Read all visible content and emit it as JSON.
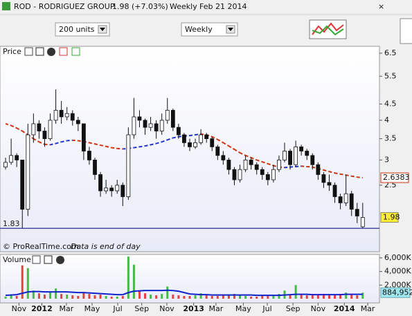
{
  "toolbar": {
    "symbol": "ROD - RODRIGUEZ GROUP",
    "change": "1.98 (+7.03%)",
    "period": "Weekly",
    "date": "Feb 21 2014",
    "units_select": "200 units",
    "period_select": "Weekly"
  },
  "chart_data": [
    {
      "type": "candlestick",
      "title": "Price",
      "log_scale": true,
      "ylim": [
        1.545,
        6.83
      ],
      "xlim": [
        -1,
        67
      ],
      "yticks": [
        6.5,
        5.5,
        4.5,
        4,
        3.5,
        3,
        2.5
      ],
      "ohlc": [
        [
          2.85,
          3.05,
          2.8,
          2.95
        ],
        [
          2.95,
          3.5,
          2.9,
          3.1
        ],
        [
          3.1,
          3.15,
          2.85,
          3.0
        ],
        [
          3.0,
          3.0,
          1.83,
          2.1
        ],
        [
          2.1,
          3.9,
          2.0,
          3.6
        ],
        [
          3.6,
          4.2,
          3.4,
          3.9
        ],
        [
          3.9,
          4.0,
          3.5,
          3.7
        ],
        [
          3.7,
          3.8,
          3.3,
          3.5
        ],
        [
          3.5,
          4.2,
          3.45,
          4.0
        ],
        [
          4.0,
          5.0,
          3.9,
          4.3
        ],
        [
          4.3,
          4.6,
          3.9,
          4.1
        ],
        [
          4.1,
          4.4,
          4.0,
          4.2
        ],
        [
          4.2,
          4.3,
          3.85,
          4.0
        ],
        [
          4.0,
          4.1,
          3.7,
          3.9
        ],
        [
          3.9,
          3.9,
          3.0,
          3.2
        ],
        [
          3.2,
          3.3,
          2.9,
          3.0
        ],
        [
          3.0,
          3.05,
          2.6,
          2.7
        ],
        [
          2.7,
          2.75,
          2.3,
          2.4
        ],
        [
          2.4,
          2.6,
          2.35,
          2.45
        ],
        [
          2.45,
          2.5,
          2.3,
          2.4
        ],
        [
          2.4,
          2.6,
          2.35,
          2.5
        ],
        [
          2.5,
          2.55,
          2.15,
          2.3
        ],
        [
          2.3,
          3.8,
          2.25,
          3.6
        ],
        [
          3.6,
          4.7,
          3.5,
          4.1
        ],
        [
          4.1,
          4.3,
          3.8,
          4.0
        ],
        [
          4.0,
          4.05,
          3.6,
          3.8
        ],
        [
          3.8,
          4.1,
          3.7,
          3.9
        ],
        [
          3.9,
          4.0,
          3.5,
          3.7
        ],
        [
          3.7,
          4.2,
          3.6,
          4.0
        ],
        [
          4.0,
          4.7,
          3.9,
          4.3
        ],
        [
          4.3,
          4.35,
          3.7,
          3.8
        ],
        [
          3.8,
          3.9,
          3.5,
          3.6
        ],
        [
          3.6,
          3.65,
          3.3,
          3.4
        ],
        [
          3.4,
          3.5,
          3.2,
          3.3
        ],
        [
          3.3,
          3.5,
          3.25,
          3.4
        ],
        [
          3.4,
          3.75,
          3.35,
          3.6
        ],
        [
          3.6,
          3.65,
          3.4,
          3.5
        ],
        [
          3.5,
          3.55,
          3.2,
          3.3
        ],
        [
          3.3,
          3.35,
          3.0,
          3.1
        ],
        [
          3.1,
          3.2,
          2.9,
          3.0
        ],
        [
          3.0,
          3.05,
          2.7,
          2.8
        ],
        [
          2.8,
          2.85,
          2.5,
          2.6
        ],
        [
          2.6,
          2.9,
          2.55,
          2.8
        ],
        [
          2.8,
          3.1,
          2.75,
          3.0
        ],
        [
          3.0,
          3.05,
          2.8,
          2.9
        ],
        [
          2.9,
          2.95,
          2.7,
          2.8
        ],
        [
          2.8,
          2.85,
          2.6,
          2.7
        ],
        [
          2.7,
          2.75,
          2.5,
          2.6
        ],
        [
          2.6,
          2.9,
          2.55,
          2.8
        ],
        [
          2.8,
          3.1,
          2.75,
          3.0
        ],
        [
          3.0,
          3.4,
          2.95,
          3.2
        ],
        [
          3.2,
          3.25,
          2.8,
          2.9
        ],
        [
          2.9,
          3.45,
          2.85,
          3.3
        ],
        [
          3.3,
          3.35,
          3.1,
          3.2
        ],
        [
          3.2,
          3.25,
          3.0,
          3.1
        ],
        [
          3.1,
          3.15,
          2.8,
          2.9
        ],
        [
          2.9,
          2.95,
          2.6,
          2.7
        ],
        [
          2.7,
          2.75,
          2.45,
          2.55
        ],
        [
          2.55,
          2.7,
          2.4,
          2.5
        ],
        [
          2.5,
          2.55,
          2.2,
          2.3
        ],
        [
          2.3,
          2.35,
          2.1,
          2.2
        ],
        [
          2.2,
          2.7,
          2.15,
          2.35
        ],
        [
          2.35,
          2.4,
          2.0,
          2.1
        ],
        [
          2.1,
          2.2,
          1.9,
          2.0
        ],
        [
          1.85,
          2.2,
          1.83,
          1.98
        ]
      ],
      "ma": {
        "color_up": "#2233cc",
        "color_down": "#cc3311",
        "values": [
          3.9,
          3.85,
          3.78,
          3.7,
          3.6,
          3.5,
          3.42,
          3.36,
          3.35,
          3.38,
          3.42,
          3.45,
          3.46,
          3.45,
          3.43,
          3.4,
          3.37,
          3.34,
          3.31,
          3.28,
          3.26,
          3.25,
          3.26,
          3.28,
          3.3,
          3.32,
          3.35,
          3.38,
          3.42,
          3.47,
          3.52,
          3.55,
          3.57,
          3.58,
          3.6,
          3.62,
          3.6,
          3.55,
          3.48,
          3.4,
          3.32,
          3.24,
          3.16,
          3.1,
          3.05,
          3.0,
          2.96,
          2.92,
          2.88,
          2.85,
          2.84,
          2.85,
          2.86,
          2.87,
          2.86,
          2.85,
          2.82,
          2.79,
          2.76,
          2.73,
          2.71,
          2.69,
          2.67,
          2.65,
          2.6383
        ]
      },
      "footer": "© ProRealTime.com",
      "note": "Data is end of day"
    },
    {
      "type": "bar",
      "title": "Volume",
      "ylim": [
        0,
        6500000
      ],
      "yticks": [
        {
          "value": 6000000,
          "label": "6,000K"
        },
        {
          "value": 4000000,
          "label": "4,000K"
        },
        {
          "value": 2000000,
          "label": "2,000K"
        }
      ],
      "values": [
        300000,
        500000,
        400000,
        4900000,
        4500000,
        1200000,
        800000,
        600000,
        1000000,
        1500000,
        700000,
        600000,
        500000,
        400000,
        900000,
        700000,
        500000,
        600000,
        400000,
        300000,
        300000,
        400000,
        6200000,
        5000000,
        1200000,
        800000,
        600000,
        500000,
        700000,
        1800000,
        600000,
        500000,
        400000,
        400000,
        500000,
        800000,
        500000,
        400000,
        400000,
        500000,
        600000,
        700000,
        500000,
        400000,
        300000,
        300000,
        400000,
        400000,
        500000,
        700000,
        1200000,
        600000,
        2000000,
        700000,
        500000,
        500000,
        600000,
        700000,
        500000,
        600000,
        700000,
        900000,
        600000,
        500000,
        884952
      ],
      "value_labels": {
        "64": "884,952"
      },
      "up_color": "#44bb44",
      "down_color": "#dd4444",
      "ma": {
        "color": "#1122cc",
        "values": [
          500000,
          550000,
          600000,
          800000,
          1000000,
          1050000,
          1050000,
          1000000,
          1000000,
          1000000,
          1000000,
          1000000,
          950000,
          900000,
          900000,
          850000,
          800000,
          750000,
          700000,
          650000,
          600000,
          600000,
          900000,
          1100000,
          1150000,
          1200000,
          1200000,
          1200000,
          1200000,
          1250000,
          1200000,
          1100000,
          900000,
          700000,
          650000,
          600000,
          600000,
          550000,
          550000,
          550000,
          550000,
          550000,
          550000,
          550000,
          550000,
          500000,
          500000,
          500000,
          500000,
          500000,
          550000,
          600000,
          650000,
          650000,
          650000,
          600000,
          600000,
          600000,
          600000,
          600000,
          600000,
          650000,
          650000,
          650000,
          650000
        ]
      },
      "xticks": [
        {
          "value": 2.4,
          "label": "Nov"
        },
        {
          "value": 6.5,
          "label": "2012",
          "major": true
        },
        {
          "value": 10.9,
          "label": "Mar"
        },
        {
          "value": 15.5,
          "label": "May"
        },
        {
          "value": 20.1,
          "label": "Jul"
        },
        {
          "value": 24.4,
          "label": "Sep"
        },
        {
          "value": 28.9,
          "label": "Nov"
        },
        {
          "value": 33.7,
          "label": "2013",
          "major": true
        },
        {
          "value": 37.7,
          "label": "Mar"
        },
        {
          "value": 42.6,
          "label": "May"
        },
        {
          "value": 46.9,
          "label": "Jul"
        },
        {
          "value": 51.5,
          "label": "Sep"
        },
        {
          "value": 56,
          "label": "Nov"
        },
        {
          "value": 60.7,
          "label": "2014",
          "major": true
        },
        {
          "value": 64.9,
          "label": "Mar"
        }
      ]
    }
  ]
}
